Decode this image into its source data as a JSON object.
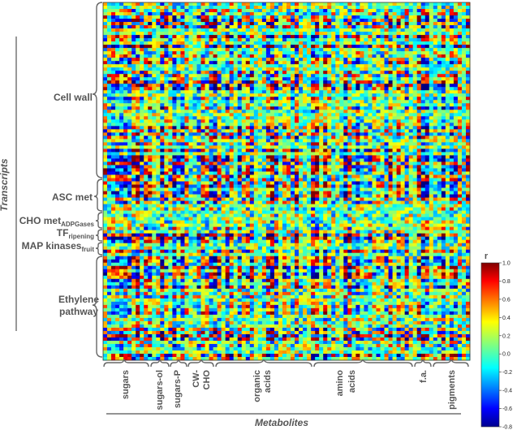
{
  "chart_data": {
    "type": "heatmap",
    "title": "",
    "xlabel": "Metabolites",
    "ylabel": "Transcripts",
    "n_rows": 110,
    "n_cols": 90,
    "row_groups": [
      {
        "label": "Cell wall",
        "sub": ""
      },
      {
        "label": "ASC met",
        "sub": ""
      },
      {
        "label": "CHO met",
        "sub": "ADPGases"
      },
      {
        "label": "TF",
        "sub": "ripening"
      },
      {
        "label": "MAP kinases",
        "sub": "fruit"
      },
      {
        "label": "Ethylene pathway",
        "sub": ""
      }
    ],
    "col_groups": [
      {
        "label": "sugars"
      },
      {
        "label": "sugars-ol"
      },
      {
        "label": "sugars-P"
      },
      {
        "label": "CW-CHO"
      },
      {
        "label": "organic acids"
      },
      {
        "label": "amino acids"
      },
      {
        "label": "f.a."
      },
      {
        "label": "pigments"
      }
    ],
    "colorbar": {
      "title": "r",
      "min": -0.8,
      "max": 1.0,
      "ticks": [
        "1.0",
        "0.8",
        "0.6",
        "0.4",
        "0.2",
        "0.0",
        "-0.2",
        "-0.4",
        "-0.6",
        "-0.8"
      ],
      "colormap": "jet"
    },
    "values_note": ""
  },
  "labels": {
    "ylabel": "Transcripts",
    "xlabel": "Metabolites",
    "colorbar_title": "r",
    "row": {
      "cell_wall": "Cell wall",
      "asc_met": "ASC met",
      "cho_met": "CHO met",
      "cho_met_sub": "ADPGases",
      "tf": "TF",
      "tf_sub": "ripening",
      "map": "MAP kinases",
      "map_sub": "fruit",
      "eth1": "Ethylene",
      "eth2": "pathway"
    },
    "col": {
      "sugars": "sugars",
      "sugars_ol": "sugars-ol",
      "sugars_p": "sugars-P",
      "cw1": "CW-",
      "cw2": "CHO",
      "org1": "organic",
      "org2": "acids",
      "amino1": "amino",
      "amino2": "acids",
      "fa": "f.a.",
      "pigments": "pigments"
    }
  }
}
